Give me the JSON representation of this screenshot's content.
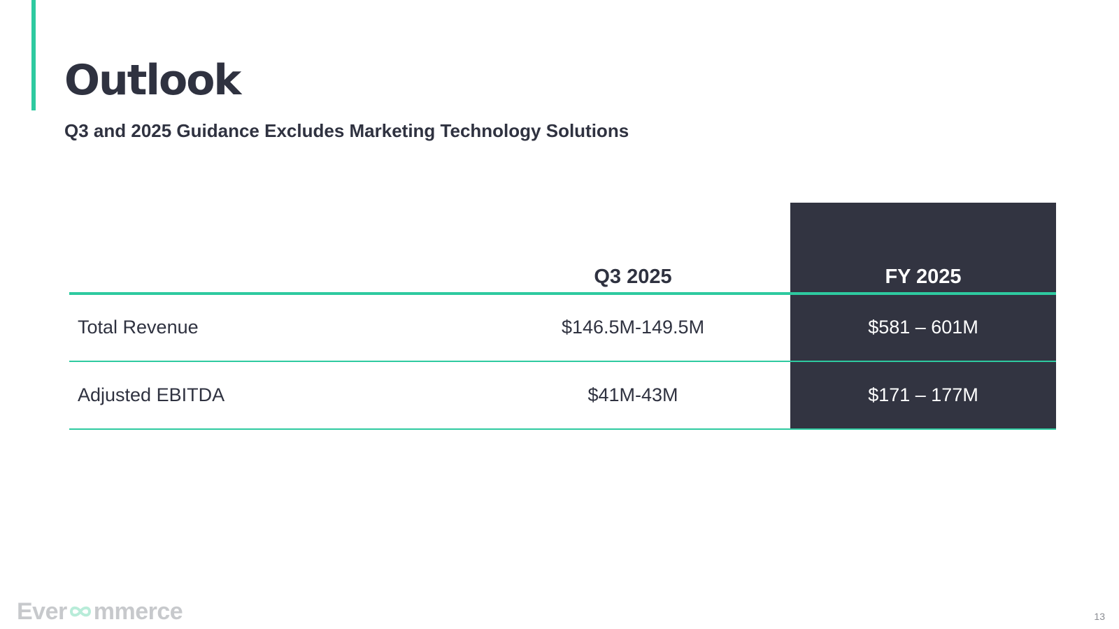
{
  "slide": {
    "title": "Outlook",
    "subtitle": "Q3 and 2025 Guidance Excludes Marketing Technology Solutions",
    "page_number": "13"
  },
  "table": {
    "headers": {
      "label": "",
      "q3": "Q3 2025",
      "fy": "FY 2025"
    },
    "rows": [
      {
        "label": "Total Revenue",
        "q3": "$146.5M-149.5M",
        "fy": "$581 – 601M"
      },
      {
        "label": "Adjusted EBITDA",
        "q3": "$41M-43M",
        "fy": "$171 – 177M"
      }
    ]
  },
  "logo": {
    "text_before": "Ever",
    "text_after": "mmerce"
  },
  "colors": {
    "accent": "#2ecaa0",
    "dark": "#323441",
    "text": "#2f3240",
    "logo_gray": "#c7c9cc"
  }
}
